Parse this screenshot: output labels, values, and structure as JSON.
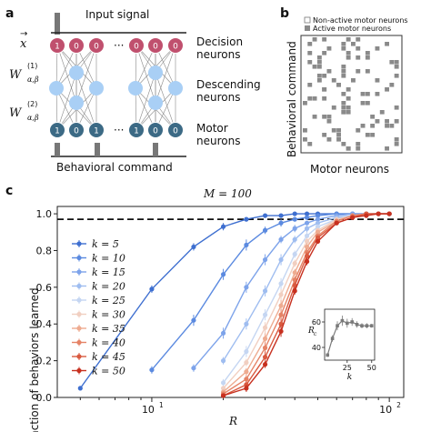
{
  "panels": {
    "a": "a",
    "b": "b",
    "c": "c"
  },
  "panel_a": {
    "input_signal": "Input signal",
    "decision": [
      "Decision",
      "neurons"
    ],
    "descending": [
      "Descending",
      "neurons"
    ],
    "motor": [
      "Motor",
      "neurons"
    ],
    "behavioral_command": "Behavioral command",
    "row_labels": {
      "x": "x",
      "w1": "W",
      "w1_sup": "(1)",
      "w1_sub": "α,β",
      "w2": "W",
      "w2_sup": "(2)",
      "w2_sub": "α,β"
    },
    "decision_bits": [
      "1",
      "0",
      "0",
      "0",
      "0",
      "0"
    ],
    "motor_bits": [
      "1",
      "0",
      "1",
      "1",
      "0",
      "0"
    ],
    "ellipsis": "···",
    "colors": {
      "decision": "#c0506e",
      "descending": "#a9cff5",
      "motor": "#3c6a85"
    }
  },
  "panel_b": {
    "legend": [
      "Non-active motor neurons",
      "Active motor neurons"
    ],
    "ylabel": "Behavioral command",
    "xlabel": "Motor neurons",
    "active_color": "#8a8a8a"
  },
  "chart_data": {
    "type": "line",
    "title": "M = 100",
    "xlabel": "R",
    "ylabel": "Fraction of behaviors learned",
    "xscale": "log",
    "xlim": [
      4,
      115
    ],
    "ylim": [
      0,
      1.04
    ],
    "yticks": [
      "0.0",
      "0.2",
      "0.4",
      "0.6",
      "0.8",
      "1.0"
    ],
    "xticks": [
      "10",
      "10"
    ],
    "xtick_exponents": [
      "1",
      "2"
    ],
    "hline": 0.97,
    "legend_location": "left",
    "series": [
      {
        "name": "k = 5",
        "color": "#3e6fd0",
        "x": [
          5,
          10,
          15,
          20,
          25,
          30,
          35,
          40,
          45,
          50,
          60,
          70,
          80,
          90,
          100
        ],
        "y": [
          0.05,
          0.59,
          0.82,
          0.93,
          0.97,
          0.99,
          0.99,
          1.0,
          1.0,
          1.0,
          1.0,
          1.0,
          1.0,
          1.0,
          1.0
        ],
        "err": [
          0.01,
          0.02,
          0.02,
          0.02,
          0.01,
          0.01,
          0.01,
          0.0,
          0.0,
          0.0,
          0.0,
          0.0,
          0.0,
          0.0,
          0.0
        ]
      },
      {
        "name": "k = 10",
        "color": "#5b8ae0",
        "x": [
          10,
          15,
          20,
          25,
          30,
          35,
          40,
          45,
          50,
          60,
          70,
          80,
          90,
          100
        ],
        "y": [
          0.15,
          0.42,
          0.67,
          0.83,
          0.91,
          0.95,
          0.97,
          0.98,
          0.99,
          1.0,
          1.0,
          1.0,
          1.0,
          1.0
        ],
        "err": [
          0.02,
          0.03,
          0.03,
          0.03,
          0.02,
          0.02,
          0.01,
          0.01,
          0.01,
          0.0,
          0.0,
          0.0,
          0.0,
          0.0
        ]
      },
      {
        "name": "k = 15",
        "color": "#7da3ea",
        "x": [
          15,
          20,
          25,
          30,
          35,
          40,
          45,
          50,
          60,
          70,
          80,
          90,
          100
        ],
        "y": [
          0.16,
          0.35,
          0.6,
          0.75,
          0.86,
          0.92,
          0.95,
          0.97,
          0.99,
          1.0,
          1.0,
          1.0,
          1.0
        ],
        "err": [
          0.02,
          0.03,
          0.03,
          0.03,
          0.02,
          0.02,
          0.01,
          0.01,
          0.01,
          0.0,
          0.0,
          0.0,
          0.0
        ]
      },
      {
        "name": "k = 20",
        "color": "#9fbdf0",
        "x": [
          20,
          25,
          30,
          35,
          40,
          45,
          50,
          60,
          70,
          80,
          90,
          100
        ],
        "y": [
          0.2,
          0.4,
          0.58,
          0.75,
          0.86,
          0.92,
          0.95,
          0.98,
          0.99,
          1.0,
          1.0,
          1.0
        ],
        "err": [
          0.02,
          0.03,
          0.03,
          0.03,
          0.02,
          0.02,
          0.01,
          0.01,
          0.0,
          0.0,
          0.0,
          0.0
        ]
      },
      {
        "name": "k = 25",
        "color": "#c5d6f2",
        "x": [
          20,
          25,
          30,
          35,
          40,
          45,
          50,
          60,
          70,
          80,
          90,
          100
        ],
        "y": [
          0.08,
          0.25,
          0.45,
          0.62,
          0.78,
          0.88,
          0.93,
          0.97,
          0.99,
          1.0,
          1.0,
          1.0
        ],
        "err": [
          0.02,
          0.03,
          0.03,
          0.03,
          0.02,
          0.02,
          0.01,
          0.01,
          0.0,
          0.0,
          0.0,
          0.0
        ]
      },
      {
        "name": "k = 30",
        "color": "#f1cfc1",
        "x": [
          20,
          25,
          30,
          35,
          40,
          45,
          50,
          60,
          70,
          80,
          90,
          100
        ],
        "y": [
          0.05,
          0.19,
          0.38,
          0.56,
          0.73,
          0.85,
          0.91,
          0.97,
          0.99,
          1.0,
          1.0,
          1.0
        ],
        "err": [
          0.01,
          0.02,
          0.03,
          0.03,
          0.02,
          0.02,
          0.01,
          0.01,
          0.0,
          0.0,
          0.0,
          0.0
        ]
      },
      {
        "name": "k = 35",
        "color": "#eeab90",
        "x": [
          20,
          25,
          30,
          35,
          40,
          45,
          50,
          60,
          70,
          80,
          90,
          100
        ],
        "y": [
          0.03,
          0.14,
          0.32,
          0.5,
          0.68,
          0.82,
          0.9,
          0.96,
          0.99,
          1.0,
          1.0,
          1.0
        ],
        "err": [
          0.01,
          0.02,
          0.03,
          0.03,
          0.02,
          0.02,
          0.01,
          0.01,
          0.0,
          0.0,
          0.0,
          0.0
        ]
      },
      {
        "name": "k = 40",
        "color": "#e58366",
        "x": [
          20,
          25,
          30,
          35,
          40,
          45,
          50,
          60,
          70,
          80,
          90,
          100
        ],
        "y": [
          0.02,
          0.1,
          0.27,
          0.45,
          0.64,
          0.79,
          0.88,
          0.96,
          0.99,
          1.0,
          1.0,
          1.0
        ],
        "err": [
          0.01,
          0.02,
          0.03,
          0.03,
          0.02,
          0.02,
          0.01,
          0.01,
          0.0,
          0.0,
          0.0,
          0.0
        ]
      },
      {
        "name": "k = 45",
        "color": "#d95a40",
        "x": [
          20,
          25,
          30,
          35,
          40,
          45,
          50,
          60,
          70,
          80,
          90,
          100
        ],
        "y": [
          0.01,
          0.07,
          0.22,
          0.4,
          0.61,
          0.77,
          0.87,
          0.95,
          0.98,
          1.0,
          1.0,
          1.0
        ],
        "err": [
          0.01,
          0.02,
          0.03,
          0.03,
          0.02,
          0.02,
          0.01,
          0.01,
          0.0,
          0.0,
          0.0,
          0.0
        ]
      },
      {
        "name": "k = 50",
        "color": "#c7301f",
        "x": [
          20,
          25,
          30,
          35,
          40,
          45,
          50,
          60,
          70,
          80,
          90,
          100
        ],
        "y": [
          0.01,
          0.05,
          0.18,
          0.36,
          0.58,
          0.74,
          0.85,
          0.95,
          0.98,
          0.99,
          1.0,
          1.0
        ],
        "err": [
          0.01,
          0.02,
          0.02,
          0.03,
          0.02,
          0.02,
          0.01,
          0.01,
          0.0,
          0.0,
          0.0,
          0.0
        ]
      }
    ],
    "inset": {
      "type": "line",
      "xlabel": "k",
      "ylabel": "R",
      "ylabel_sub": "c",
      "xticks": [
        "25",
        "50"
      ],
      "yticks": [
        "40",
        "60"
      ],
      "xlim": [
        2,
        53
      ],
      "ylim": [
        30,
        70
      ],
      "color": "#7a7a7a",
      "x": [
        5,
        10,
        15,
        20,
        25,
        30,
        35,
        40,
        45,
        50
      ],
      "y": [
        34,
        47,
        57,
        61,
        59,
        60,
        58,
        57,
        57,
        57
      ],
      "err": [
        1.5,
        2.5,
        3.5,
        4,
        3.5,
        3,
        2.5,
        2,
        2,
        1.5
      ]
    }
  }
}
